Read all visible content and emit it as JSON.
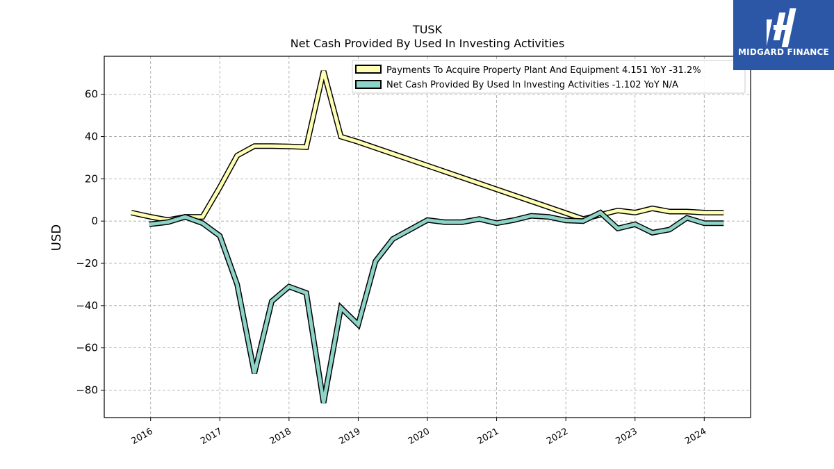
{
  "brand": {
    "name": "MIDGARD FINANCE"
  },
  "colors": {
    "payments": "#ffffb3",
    "net_cash": "#8dd3c7",
    "outline": "#000000",
    "brand_bg": "#2b57a6"
  },
  "chart_data": {
    "type": "line",
    "title": "TUSK",
    "subtitle": "Net Cash Provided By Used In Investing Activities",
    "ylabel": "USD",
    "xlabel": "",
    "ylim": [
      -93,
      78
    ],
    "xlim": [
      2015.33,
      2024.67
    ],
    "yticks": [
      -80,
      -60,
      -40,
      -20,
      0,
      20,
      40,
      60
    ],
    "xticks": [
      {
        "x": 2016.0,
        "label": "2016"
      },
      {
        "x": 2017.0,
        "label": "2017"
      },
      {
        "x": 2018.0,
        "label": "2018"
      },
      {
        "x": 2019.0,
        "label": "2019"
      },
      {
        "x": 2020.0,
        "label": "2020"
      },
      {
        "x": 2021.0,
        "label": "2021"
      },
      {
        "x": 2022.0,
        "label": "2022"
      },
      {
        "x": 2023.0,
        "label": "2023"
      },
      {
        "x": 2024.0,
        "label": "2024"
      }
    ],
    "grid": true,
    "legend_position": "top-right",
    "series": [
      {
        "name": "Payments To Acquire Property Plant And Equipment",
        "legend_label": "Payments To Acquire Property Plant And Equipment  4.151 YoY -31.2%",
        "color": "#ffffb3",
        "x": [
          2015.72,
          2016.0,
          2016.25,
          2016.5,
          2016.75,
          2017.0,
          2017.25,
          2017.5,
          2017.75,
          2018.0,
          2018.25,
          2018.5,
          2018.75,
          2019.0,
          2022.25,
          2022.5,
          2022.75,
          2023.0,
          2023.25,
          2023.5,
          2023.75,
          2024.0,
          2024.28
        ],
        "y": [
          4,
          2,
          0.5,
          2,
          2,
          16,
          31,
          35.5,
          35.5,
          35.3,
          35,
          71,
          40,
          37.5,
          1,
          3,
          5,
          4,
          6,
          4.5,
          4.5,
          4,
          4
        ]
      },
      {
        "name": "Net Cash Provided By Used In Investing Activities",
        "legend_label": "Net Cash Provided By Used In Investing Activities  -1.102 YoY N/A",
        "color": "#8dd3c7",
        "x": [
          2015.98,
          2016.25,
          2016.5,
          2016.75,
          2017.0,
          2017.25,
          2017.5,
          2017.75,
          2018.0,
          2018.25,
          2018.5,
          2018.75,
          2019.0,
          2019.25,
          2019.5,
          2019.75,
          2020.0,
          2020.25,
          2020.5,
          2020.75,
          2021.0,
          2021.25,
          2021.5,
          2021.75,
          2022.0,
          2022.25,
          2022.5,
          2022.75,
          2023.0,
          2023.25,
          2023.5,
          2023.75,
          2024.0,
          2024.28
        ],
        "y": [
          -1.5,
          -0.5,
          2,
          -1,
          -7,
          -30,
          -72,
          -38,
          -31,
          -34,
          -86,
          -41,
          -49,
          -19,
          -8.5,
          -4,
          0.5,
          -0.5,
          -0.5,
          1,
          -1,
          0.5,
          2.5,
          2,
          0.3,
          0,
          4,
          -3.5,
          -1.5,
          -5.5,
          -4,
          1.5,
          -1,
          -1
        ]
      }
    ]
  }
}
